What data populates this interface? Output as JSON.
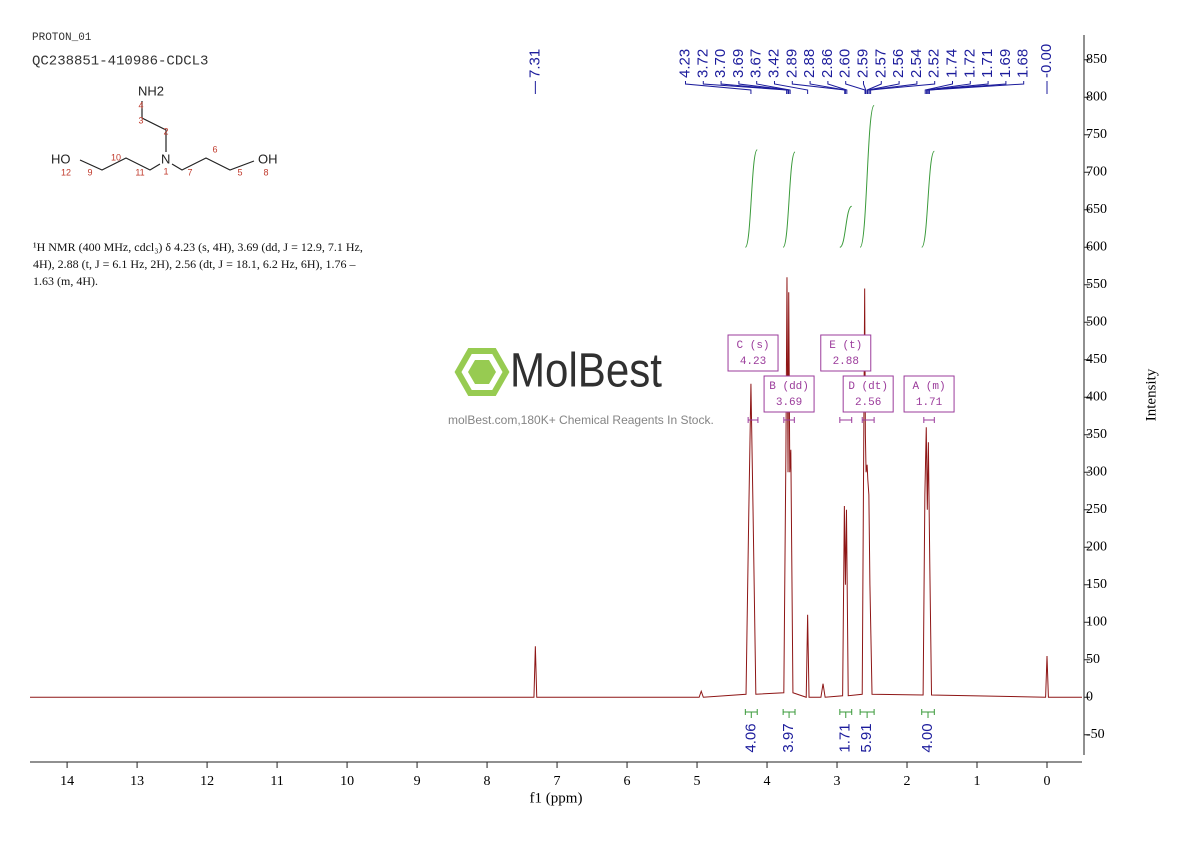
{
  "header": {
    "experiment": "PROTON_01",
    "sample": "QC238851-410986-CDCL3"
  },
  "structure": {
    "amine": "NH2",
    "nitrogen": "N",
    "hydroxyl_left": "HO",
    "hydroxyl_right": "OH",
    "atom_numbers": [
      "4",
      "3",
      "2",
      "1",
      "11",
      "10",
      "9",
      "12",
      "7",
      "6",
      "5",
      "8"
    ]
  },
  "description": [
    "¹H NMR (400 MHz, cdcl₃) δ 4.23 (s, 4H), 3.69 (dd, J = 12.9, 7.1 Hz,",
    "4H), 2.88 (t, J = 6.1 Hz, 2H), 2.56 (dt, J = 18.1, 6.2 Hz, 6H), 1.76 –",
    "1.63 (m, 4H)."
  ],
  "watermark": {
    "brand": "MolBest",
    "tagline": "molBest.com,180K+ Chemical Reagents In Stock."
  },
  "chart_data": {
    "type": "line",
    "x_label": "f1 (ppm)",
    "y_label": "Intensity",
    "xlim": [
      14.53,
      -0.5
    ],
    "xticks": [
      14,
      13,
      12,
      11,
      10,
      9,
      8,
      7,
      6,
      5,
      4,
      3,
      2,
      1,
      0
    ],
    "ylim": [
      -77,
      883
    ],
    "yticks": [
      -50,
      0,
      50,
      100,
      150,
      200,
      250,
      300,
      350,
      400,
      450,
      500,
      550,
      600,
      650,
      700,
      750,
      800,
      850
    ],
    "x": [
      14.53,
      7.33,
      7.31,
      7.29,
      4.97,
      4.94,
      4.91,
      4.3,
      4.26,
      4.23,
      4.2,
      4.16,
      3.76,
      3.73,
      3.715,
      3.7,
      3.69,
      3.675,
      3.66,
      3.63,
      3.44,
      3.42,
      3.4,
      3.23,
      3.2,
      3.17,
      2.92,
      2.895,
      2.88,
      2.865,
      2.84,
      2.64,
      2.605,
      2.595,
      2.585,
      2.57,
      2.56,
      2.545,
      2.53,
      2.5,
      1.77,
      1.745,
      1.725,
      1.71,
      1.695,
      1.675,
      1.65,
      0.02,
      0.0,
      -0.02,
      -0.5
    ],
    "series": [
      {
        "color": "#8e1616",
        "values": [
          0,
          0,
          68,
          0,
          0,
          8,
          0,
          4,
          250,
          418,
          250,
          4,
          6,
          330,
          560,
          300,
          540,
          300,
          330,
          6,
          0,
          110,
          0,
          0,
          18,
          0,
          2,
          255,
          150,
          250,
          2,
          4,
          545,
          350,
          300,
          310,
          290,
          270,
          150,
          4,
          3,
          270,
          360,
          250,
          340,
          180,
          3,
          0,
          55,
          0,
          0
        ]
      }
    ],
    "peak_labels": [
      "7.31",
      "4.23",
      "3.72",
      "3.70",
      "3.69",
      "3.67",
      "3.42",
      "2.89",
      "2.88",
      "2.86",
      "2.60",
      "2.59",
      "2.57",
      "2.56",
      "2.54",
      "2.52",
      "1.74",
      "1.72",
      "1.71",
      "1.69",
      "1.68",
      "-0.00"
    ],
    "peak_label_color": "#1c1c9c",
    "integrals": {
      "color": "#3a9a3a",
      "values": [
        4.06,
        3.97,
        1.71,
        5.91,
        4.0
      ],
      "value_labels": [
        "4.06",
        "3.97",
        "1.71",
        "5.91",
        "4.00"
      ],
      "ranges": [
        [
          4.31,
          4.14
        ],
        [
          3.77,
          3.6
        ],
        [
          2.96,
          2.79
        ],
        [
          2.67,
          2.47
        ],
        [
          1.79,
          1.61
        ]
      ]
    },
    "multiplets": {
      "color": "#9b3b9b",
      "items": [
        {
          "name": "C (s)",
          "shift": "4.23",
          "range": [
            4.27,
            4.13
          ]
        },
        {
          "name": "B (dd)",
          "shift": "3.69",
          "range": [
            3.76,
            3.61
          ]
        },
        {
          "name": "E (t)",
          "shift": "2.88",
          "range": [
            2.96,
            2.79
          ]
        },
        {
          "name": "D (dt)",
          "shift": "2.56",
          "range": [
            2.64,
            2.47
          ]
        },
        {
          "name": "A (m)",
          "shift": "1.71",
          "range": [
            1.76,
            1.61
          ]
        }
      ]
    }
  }
}
